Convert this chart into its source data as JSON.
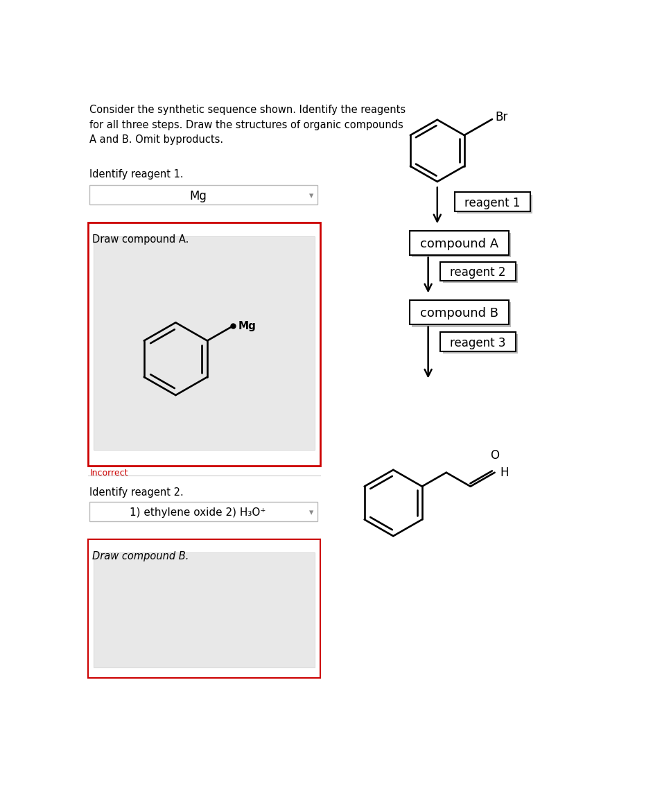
{
  "bg_color": "#ffffff",
  "title_text": "Consider the synthetic sequence shown. Identify the reagents\nfor all three steps. Draw the structures of organic compounds\nA and B. Omit byproducts.",
  "identify_reagent1_label": "Identify reagent 1.",
  "reagent1_answer": "Mg",
  "draw_compound_A_label": "Draw compound A.",
  "incorrect_label": "Incorrect",
  "identify_reagent2_label": "Identify reagent 2.",
  "reagent2_answer": "1) ethylene oxide 2) H₃O⁺",
  "draw_compound_B_label": "Draw compound B.",
  "flow_reagent1": "reagent 1",
  "flow_reagent2": "reagent 2",
  "flow_reagent3": "reagent 3",
  "flow_compound_A": "compound A",
  "flow_compound_B": "compound B"
}
